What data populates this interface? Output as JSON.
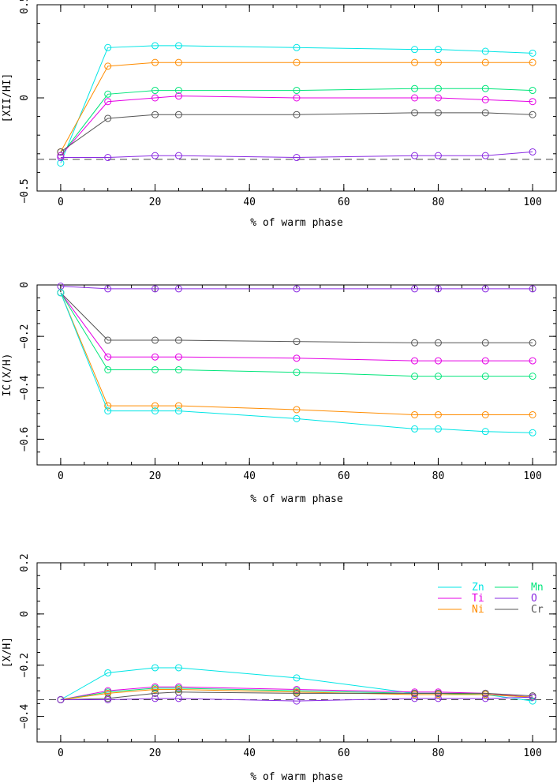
{
  "chart_data": [
    {
      "type": "line",
      "xlabel": "% of warm phase",
      "ylabel": "[XII/HI]",
      "xlim": [
        -5,
        105
      ],
      "ylim": [
        -0.5,
        0.5
      ],
      "xticks": [
        0,
        20,
        40,
        60,
        80,
        100
      ],
      "yticks": [
        -0.5,
        0,
        0.5
      ],
      "ytick_labels": [
        "−0.5",
        "0",
        "0.5"
      ],
      "minor_y_step": 0.1,
      "minor_x_step": 5,
      "ref_y": -0.33,
      "legend": null,
      "x": [
        0,
        10,
        20,
        25,
        50,
        75,
        80,
        90,
        100
      ],
      "series": [
        {
          "name": "Zn",
          "color": "#00e5e5",
          "values": [
            -0.35,
            0.27,
            0.28,
            0.28,
            0.27,
            0.26,
            0.26,
            0.25,
            0.24
          ]
        },
        {
          "name": "Ni",
          "color": "#ff8c00",
          "values": [
            -0.29,
            0.17,
            0.19,
            0.19,
            0.19,
            0.19,
            0.19,
            0.19,
            0.19
          ]
        },
        {
          "name": "Mn",
          "color": "#00e57a",
          "values": [
            -0.31,
            0.02,
            0.04,
            0.04,
            0.04,
            0.05,
            0.05,
            0.05,
            0.04
          ]
        },
        {
          "name": "Ti",
          "color": "#e500e5",
          "values": [
            -0.31,
            -0.02,
            0.0,
            0.01,
            0.0,
            0.0,
            0.0,
            -0.01,
            -0.02
          ]
        },
        {
          "name": "Cr",
          "color": "#555555",
          "values": [
            -0.29,
            -0.11,
            -0.09,
            -0.09,
            -0.09,
            -0.08,
            -0.08,
            -0.08,
            -0.09
          ]
        },
        {
          "name": "O",
          "color": "#8a2be2",
          "values": [
            -0.32,
            -0.32,
            -0.31,
            -0.31,
            -0.32,
            -0.31,
            -0.31,
            -0.31,
            -0.29
          ]
        }
      ]
    },
    {
      "type": "line",
      "xlabel": "% of warm phase",
      "ylabel": "IC(X/H)",
      "xlim": [
        -5,
        105
      ],
      "ylim": [
        -0.7,
        0.0
      ],
      "xticks": [
        0,
        20,
        40,
        60,
        80,
        100
      ],
      "yticks": [
        -0.6,
        -0.4,
        -0.2,
        0
      ],
      "ytick_labels": [
        "−0.6",
        "−0.4",
        "−0.2",
        "0"
      ],
      "minor_y_step": 0.05,
      "minor_x_step": 5,
      "ref_y": null,
      "legend": null,
      "x": [
        0,
        10,
        20,
        25,
        50,
        75,
        80,
        90,
        100
      ],
      "series": [
        {
          "name": "O",
          "color": "#8a2be2",
          "values": [
            -0.005,
            -0.015,
            -0.015,
            -0.015,
            -0.015,
            -0.015,
            -0.015,
            -0.015,
            -0.015
          ]
        },
        {
          "name": "Cr",
          "color": "#555555",
          "values": [
            -0.03,
            -0.215,
            -0.215,
            -0.215,
            -0.22,
            -0.225,
            -0.225,
            -0.225,
            -0.225
          ]
        },
        {
          "name": "Ti",
          "color": "#e500e5",
          "values": [
            -0.03,
            -0.28,
            -0.28,
            -0.28,
            -0.285,
            -0.295,
            -0.295,
            -0.295,
            -0.295
          ]
        },
        {
          "name": "Mn",
          "color": "#00e57a",
          "values": [
            -0.03,
            -0.33,
            -0.33,
            -0.33,
            -0.34,
            -0.355,
            -0.355,
            -0.355,
            -0.355
          ]
        },
        {
          "name": "Ni",
          "color": "#ff8c00",
          "values": [
            -0.03,
            -0.47,
            -0.47,
            -0.47,
            -0.485,
            -0.505,
            -0.505,
            -0.505,
            -0.505
          ]
        },
        {
          "name": "Zn",
          "color": "#00e5e5",
          "values": [
            -0.03,
            -0.49,
            -0.49,
            -0.49,
            -0.52,
            -0.56,
            -0.56,
            -0.57,
            -0.575
          ]
        }
      ]
    },
    {
      "type": "line",
      "xlabel": "% of warm phase",
      "ylabel": "[X/H]",
      "xlim": [
        -5,
        105
      ],
      "ylim": [
        -0.5,
        0.2
      ],
      "xticks": [
        0,
        20,
        40,
        60,
        80,
        100
      ],
      "yticks": [
        -0.4,
        -0.2,
        0,
        0.2
      ],
      "ytick_labels": [
        "−0.4",
        "−0.2",
        "0",
        "0.2"
      ],
      "minor_y_step": 0.05,
      "minor_x_step": 5,
      "ref_y": -0.335,
      "legend": {
        "placement": "top-right",
        "columns": [
          [
            "Zn",
            "Ti",
            "Ni"
          ],
          [
            "Mn",
            "O",
            "Cr"
          ]
        ]
      },
      "x": [
        0,
        10,
        20,
        25,
        50,
        75,
        80,
        90,
        100
      ],
      "series": [
        {
          "name": "Zn",
          "color": "#00e5e5",
          "values": [
            -0.335,
            -0.23,
            -0.21,
            -0.21,
            -0.25,
            -0.31,
            -0.31,
            -0.315,
            -0.34
          ]
        },
        {
          "name": "Ti",
          "color": "#e500e5",
          "values": [
            -0.335,
            -0.3,
            -0.285,
            -0.285,
            -0.295,
            -0.305,
            -0.305,
            -0.31,
            -0.325
          ]
        },
        {
          "name": "Mn",
          "color": "#00e57a",
          "values": [
            -0.335,
            -0.305,
            -0.29,
            -0.29,
            -0.3,
            -0.31,
            -0.31,
            -0.315,
            -0.325
          ]
        },
        {
          "name": "Ni",
          "color": "#ff8c00",
          "values": [
            -0.335,
            -0.31,
            -0.295,
            -0.295,
            -0.305,
            -0.315,
            -0.315,
            -0.315,
            -0.325
          ]
        },
        {
          "name": "Cr",
          "color": "#555555",
          "values": [
            -0.335,
            -0.33,
            -0.31,
            -0.305,
            -0.31,
            -0.31,
            -0.31,
            -0.31,
            -0.32
          ]
        },
        {
          "name": "O",
          "color": "#8a2be2",
          "values": [
            -0.335,
            -0.335,
            -0.33,
            -0.33,
            -0.34,
            -0.33,
            -0.33,
            -0.33,
            -0.325
          ]
        }
      ]
    }
  ]
}
